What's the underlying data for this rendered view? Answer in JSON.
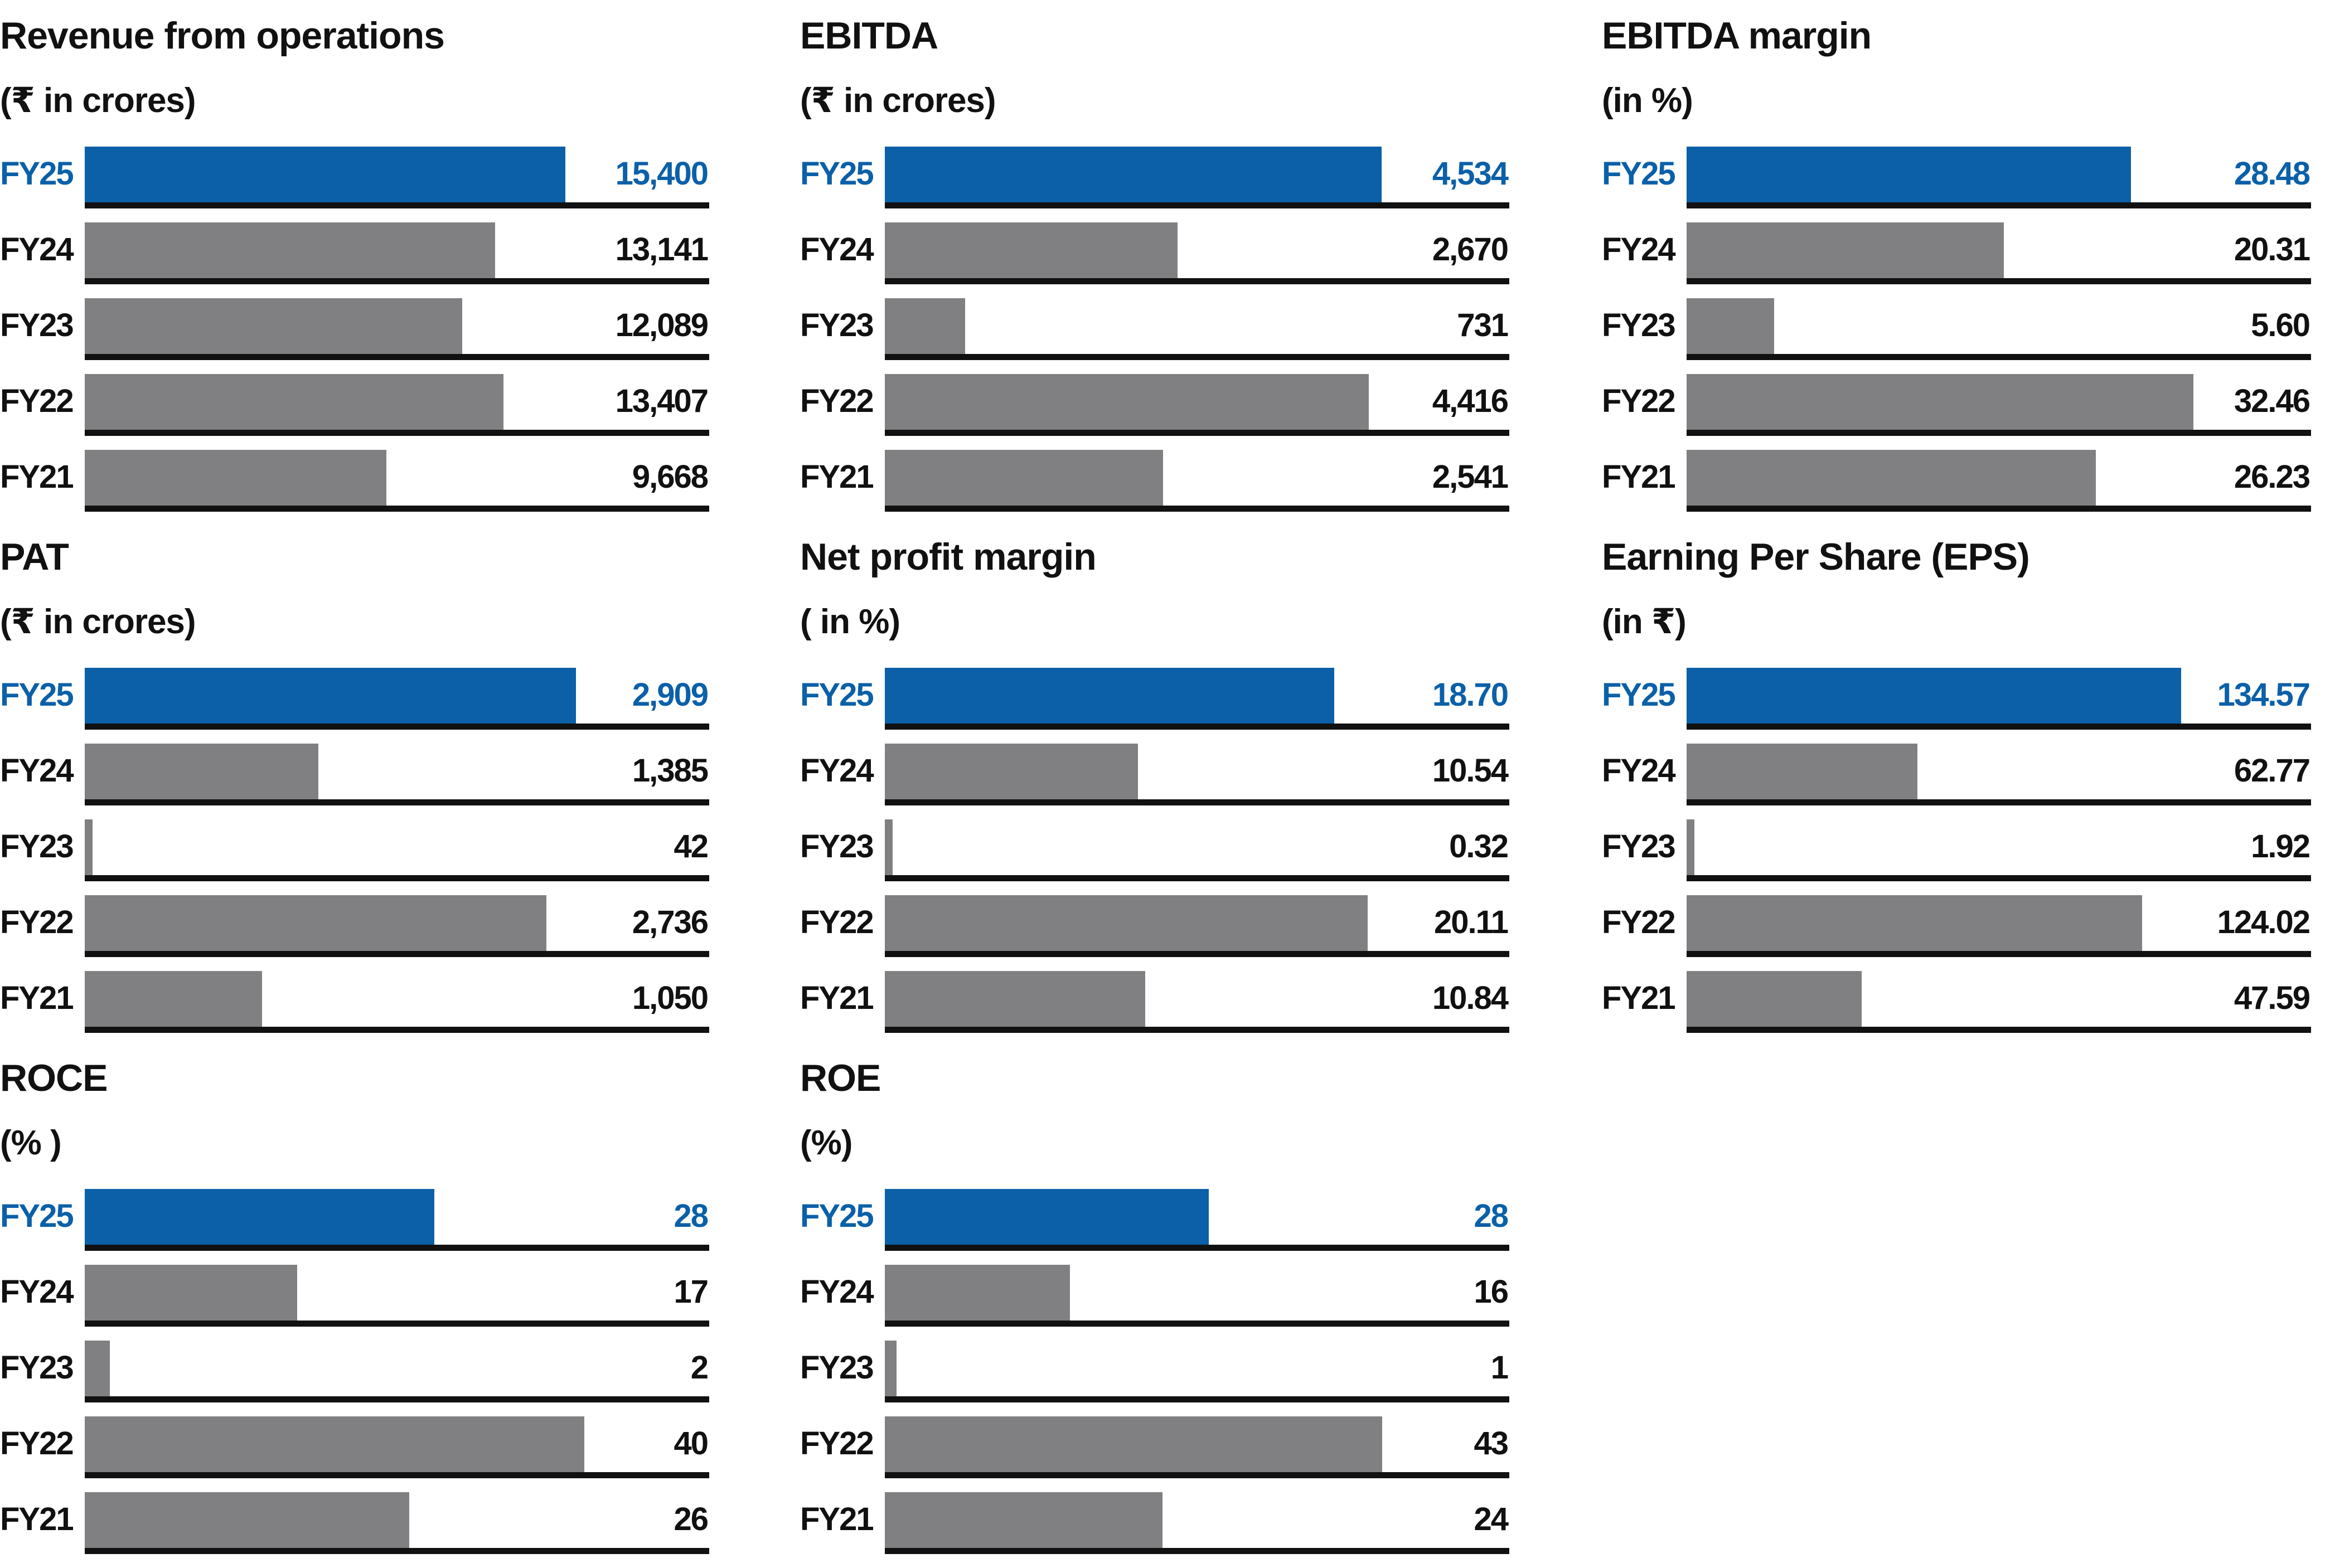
{
  "colors": {
    "current": "#0b60a8",
    "previous": "#808082",
    "axis": "#111111",
    "text": "#111111"
  },
  "chart_data": [
    {
      "type": "bar",
      "orientation": "horizontal",
      "title": "Revenue from operations",
      "subtitle": "(₹ in crores)",
      "categories": [
        "FY25",
        "FY24",
        "FY23",
        "FY22",
        "FY21"
      ],
      "values": [
        15400,
        13141,
        12089,
        13407,
        9668
      ],
      "labels": [
        "15,400",
        "13,141",
        "12,089",
        "13,407",
        "9,668"
      ],
      "xlim": [
        0,
        20000
      ]
    },
    {
      "type": "bar",
      "orientation": "horizontal",
      "title": "EBITDA",
      "subtitle": "(₹ in crores)",
      "categories": [
        "FY25",
        "FY24",
        "FY23",
        "FY22",
        "FY21"
      ],
      "values": [
        4534,
        2670,
        731,
        4416,
        2541
      ],
      "labels": [
        "4,534",
        "2,670",
        "731",
        "4,416",
        "2,541"
      ],
      "xlim": [
        0,
        5700
      ]
    },
    {
      "type": "bar",
      "orientation": "horizontal",
      "title": "EBITDA margin",
      "subtitle": "(in %)",
      "categories": [
        "FY25",
        "FY24",
        "FY23",
        "FY22",
        "FY21"
      ],
      "values": [
        28.48,
        20.31,
        5.6,
        32.46,
        26.23
      ],
      "labels": [
        "28.48",
        "20.31",
        "5.60",
        "32.46",
        "26.23"
      ],
      "xlim": [
        0,
        40
      ]
    },
    {
      "type": "bar",
      "orientation": "horizontal",
      "title": "PAT",
      "subtitle": "(₹ in crores)",
      "categories": [
        "FY25",
        "FY24",
        "FY23",
        "FY22",
        "FY21"
      ],
      "values": [
        2909,
        1385,
        42,
        2736,
        1050
      ],
      "labels": [
        "2,909",
        "1,385",
        "42",
        "2,736",
        "1,050"
      ],
      "xlim": [
        0,
        3700
      ]
    },
    {
      "type": "bar",
      "orientation": "horizontal",
      "title": "Net profit margin",
      "subtitle": "( in %)",
      "categories": [
        "FY25",
        "FY24",
        "FY23",
        "FY22",
        "FY21"
      ],
      "values": [
        18.7,
        10.54,
        0.32,
        20.11,
        10.84
      ],
      "labels": [
        "18.70",
        "10.54",
        "0.32",
        "20.11",
        "10.84"
      ],
      "xlim": [
        0,
        26
      ]
    },
    {
      "type": "bar",
      "orientation": "horizontal",
      "title": "Earning Per Share (EPS)",
      "subtitle": "(in ₹)",
      "categories": [
        "FY25",
        "FY24",
        "FY23",
        "FY22",
        "FY21"
      ],
      "values": [
        134.57,
        62.77,
        1.92,
        124.02,
        47.59
      ],
      "labels": [
        "134.57",
        "62.77",
        "1.92",
        "124.02",
        "47.59"
      ],
      "xlim": [
        0,
        170
      ]
    },
    {
      "type": "bar",
      "orientation": "horizontal",
      "title": "ROCE",
      "subtitle": "(% )",
      "categories": [
        "FY25",
        "FY24",
        "FY23",
        "FY22",
        "FY21"
      ],
      "values": [
        28,
        17,
        2,
        40,
        26
      ],
      "labels": [
        "28",
        "17",
        "2",
        "40",
        "26"
      ],
      "xlim": [
        0,
        50
      ]
    },
    {
      "type": "bar",
      "orientation": "horizontal",
      "title": "ROE",
      "subtitle": "(%)",
      "categories": [
        "FY25",
        "FY24",
        "FY23",
        "FY22",
        "FY21"
      ],
      "values": [
        28,
        16,
        1,
        43,
        24
      ],
      "labels": [
        "28",
        "16",
        "1",
        "43",
        "24"
      ],
      "xlim": [
        0,
        54
      ]
    }
  ]
}
